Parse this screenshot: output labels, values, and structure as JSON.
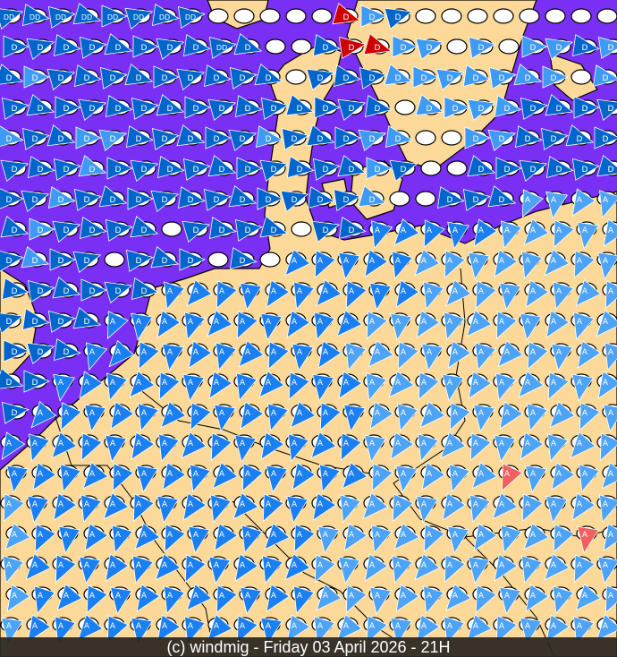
{
  "footer": {
    "caption": "(c) windmig - Friday 03 April 2026 - 21H"
  },
  "colors": {
    "sea": "#7a2ff5",
    "land": "#fcd998",
    "border": "#000000"
  },
  "marker_types": {
    "E": {
      "label": "DD",
      "color": "#0066cc",
      "heading": "east"
    },
    "D": {
      "label": "D",
      "color": "#0066cc",
      "heading": "east"
    },
    "d": {
      "label": "D",
      "color": "#3d9af5",
      "heading": "east"
    },
    "R": {
      "label": "D",
      "color": "#cc0000",
      "heading": "east"
    },
    "A": {
      "label": "A",
      "color": "#1a7ff0",
      "heading": "south-west"
    },
    "a": {
      "label": "A",
      "color": "#4da3f5",
      "heading": "south-west"
    },
    "r": {
      "label": "A",
      "color": "#f06060",
      "heading": "south-west"
    },
    "o": {
      "label": "",
      "color": "",
      "heading": ""
    }
  },
  "marker_rows": [
    "EEEEEEEEoooooRdDoooooooo",
    "DDDDDDDDEDooDRRddododdDd",
    "DdDDDDDDDDDoDDDdddddddod",
    "DDDDDDDDDDDDDDDoddddDDDD",
    "dDDddDDDDDdDDDddooddDDDD",
    "DDDdDDDDDDDDDDdDooDDDDDD",
    "DDdDDDDDDDDDDDdooDDDaaaa",
    "DdDDDDoDDDDoDDAAAAAaaaaa",
    "DdDDoDDDoDoAAAAAaaaaaaaa",
    "DDDDDDAAAAAAAAAAaaaaaaaa",
    "DDDDAAAAAAAAAAaaaaaaaaaa",
    "DDDAAAAAAAAAAaaaaaaaaaaa",
    "DDAAAAAAAAAAAAaaaaaaaaaa",
    "DAAAAAAAAAAAAAaaaaaaaaaa",
    "AAAAAAAAAAAAAAaaaaaaaaaa",
    "AAAAAAAAAAAAAAaaaaaraaaa",
    "aAAAAAAAAAAAAaaaaaaaaaaa",
    "aAAAAAAAAAAAaaaaaaaaaara",
    "aAAAAAAAAAAAaaaaaaaaaaaa",
    "aAAAAAAAAAAAaaaaaaaaaaaa",
    "aAAAAAAAAAAaaaaaaaaaaaaa"
  ]
}
